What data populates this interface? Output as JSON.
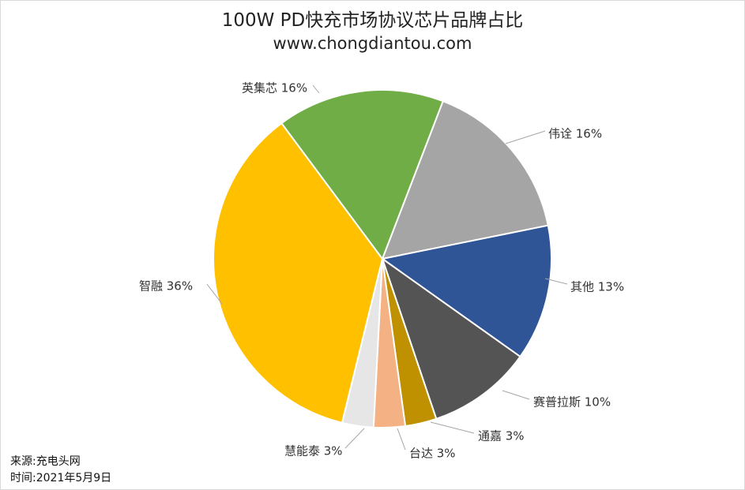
{
  "chart_data": {
    "type": "pie",
    "title": "100W PD快充市场协议芯片品牌占比",
    "subtitle": "www.chongdiantou.com",
    "slices": [
      {
        "label": "伟诠",
        "value": 16,
        "color": "#A5A5A5"
      },
      {
        "label": "其他",
        "value": 13,
        "color": "#2F5597"
      },
      {
        "label": "赛普拉斯",
        "value": 10,
        "color": "#545454"
      },
      {
        "label": "通嘉",
        "value": 3,
        "color": "#BF9000"
      },
      {
        "label": "台达",
        "value": 3,
        "color": "#F4B183"
      },
      {
        "label": "慧能泰",
        "value": 3,
        "color": "#E7E6E6"
      },
      {
        "label": "智融",
        "value": 36,
        "color": "#FFC000"
      },
      {
        "label": "英集芯",
        "value": 16,
        "color": "#70AD47"
      }
    ],
    "value_suffix": "%"
  },
  "footer": {
    "source_label": "来源:",
    "source_value": "充电头网",
    "time_label": "时间:",
    "time_value": "2021年5月9日"
  }
}
